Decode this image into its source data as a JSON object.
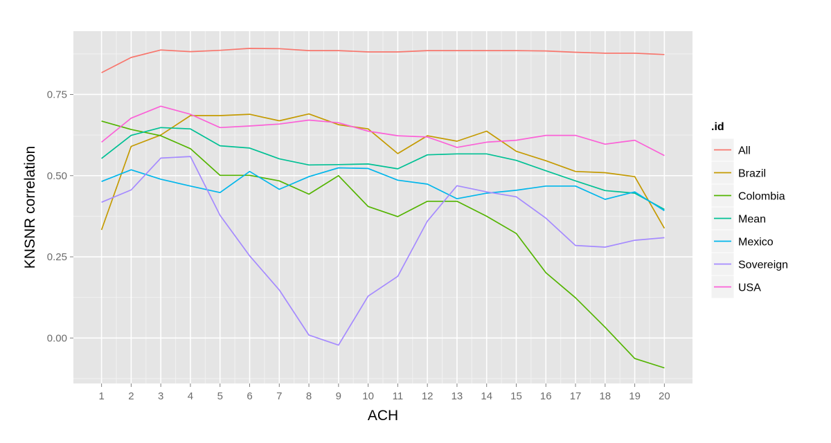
{
  "chart_data": {
    "type": "line",
    "title": "",
    "xlabel": "ACH",
    "ylabel": "KNSNR correlation",
    "x": [
      1,
      2,
      3,
      4,
      5,
      6,
      7,
      8,
      9,
      10,
      11,
      12,
      13,
      14,
      15,
      16,
      17,
      18,
      19,
      20
    ],
    "x_tick_labels": [
      "1",
      "2",
      "3",
      "4",
      "5",
      "6",
      "7",
      "8",
      "9",
      "10",
      "11",
      "12",
      "13",
      "14",
      "15",
      "16",
      "17",
      "18",
      "19",
      "20"
    ],
    "y_ticks": [
      0.0,
      0.25,
      0.5,
      0.75
    ],
    "y_tick_labels": [
      "0.00",
      "0.25",
      "0.50",
      "0.75"
    ],
    "ylim": [
      -0.14,
      0.945
    ],
    "xlim": [
      0.05,
      20.95
    ],
    "grid": true,
    "legend_title": ".id",
    "legend_position": "right",
    "series": [
      {
        "name": "All",
        "color": "#F8766D",
        "values": [
          0.817,
          0.864,
          0.887,
          0.882,
          0.886,
          0.892,
          0.891,
          0.885,
          0.885,
          0.881,
          0.881,
          0.885,
          0.885,
          0.885,
          0.885,
          0.884,
          0.88,
          0.877,
          0.877,
          0.873
        ]
      },
      {
        "name": "Brazil",
        "color": "#C49A00",
        "values": [
          0.333,
          0.59,
          0.625,
          0.685,
          0.685,
          0.689,
          0.669,
          0.69,
          0.657,
          0.644,
          0.568,
          0.623,
          0.606,
          0.637,
          0.575,
          0.546,
          0.513,
          0.509,
          0.497,
          0.338
        ]
      },
      {
        "name": "Colombia",
        "color": "#53B400",
        "values": [
          0.668,
          0.642,
          0.623,
          0.583,
          0.501,
          0.501,
          0.484,
          0.443,
          0.5,
          0.405,
          0.374,
          0.421,
          0.421,
          0.375,
          0.322,
          0.201,
          0.124,
          0.033,
          -0.063,
          -0.092
        ]
      },
      {
        "name": "Mean",
        "color": "#00C094",
        "values": [
          0.553,
          0.624,
          0.648,
          0.644,
          0.592,
          0.585,
          0.552,
          0.533,
          0.534,
          0.536,
          0.521,
          0.564,
          0.567,
          0.567,
          0.547,
          0.515,
          0.484,
          0.454,
          0.446,
          0.396
        ]
      },
      {
        "name": "Mexico",
        "color": "#00B6EB",
        "values": [
          0.482,
          0.518,
          0.489,
          0.468,
          0.448,
          0.513,
          0.458,
          0.497,
          0.524,
          0.522,
          0.486,
          0.474,
          0.429,
          0.446,
          0.455,
          0.468,
          0.468,
          0.427,
          0.45,
          0.392
        ]
      },
      {
        "name": "Sovereign",
        "color": "#A58AFF",
        "values": [
          0.418,
          0.456,
          0.554,
          0.559,
          0.378,
          0.253,
          0.148,
          0.009,
          -0.022,
          0.129,
          0.19,
          0.36,
          0.469,
          0.45,
          0.435,
          0.369,
          0.285,
          0.28,
          0.301,
          0.309
        ]
      },
      {
        "name": "USA",
        "color": "#FB61D7",
        "values": [
          0.603,
          0.677,
          0.714,
          0.689,
          0.648,
          0.653,
          0.659,
          0.671,
          0.663,
          0.637,
          0.623,
          0.619,
          0.587,
          0.603,
          0.609,
          0.624,
          0.624,
          0.597,
          0.609,
          0.562
        ]
      }
    ]
  }
}
